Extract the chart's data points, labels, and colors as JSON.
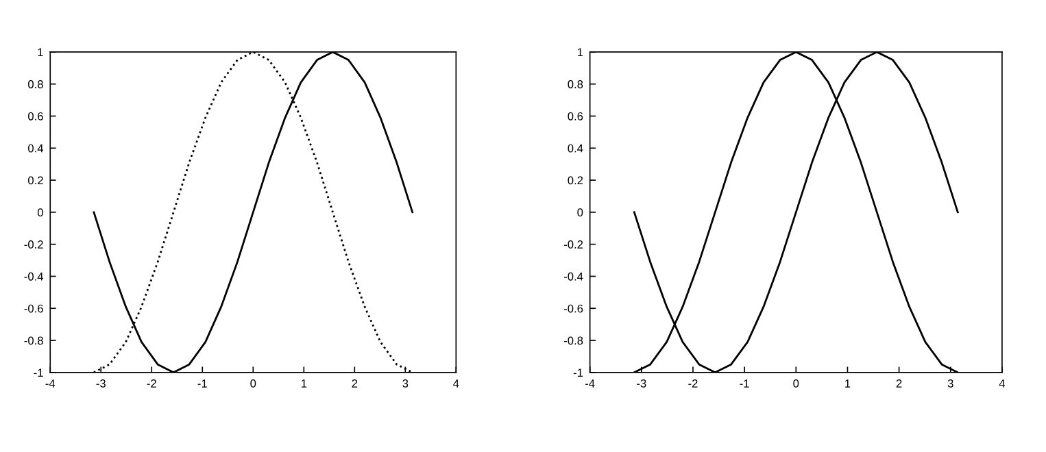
{
  "chart_data": [
    {
      "type": "line",
      "x": [
        -3.14,
        -2.83,
        -2.51,
        -2.2,
        -1.88,
        -1.57,
        -1.26,
        -0.94,
        -0.63,
        -0.31,
        0,
        0.31,
        0.63,
        0.94,
        1.26,
        1.57,
        1.88,
        2.2,
        2.51,
        2.83,
        3.14
      ],
      "series": [
        {
          "color": "#000000",
          "line_style": "solid",
          "values": [
            0,
            -0.31,
            -0.59,
            -0.81,
            -0.95,
            -1,
            -0.95,
            -0.81,
            -0.59,
            -0.31,
            0,
            0.31,
            0.59,
            0.81,
            0.95,
            1,
            0.95,
            0.81,
            0.59,
            0.31,
            0
          ]
        },
        {
          "color": "#000000",
          "line_style": "dotted",
          "values": [
            -1,
            -0.95,
            -0.81,
            -0.59,
            -0.31,
            0,
            0.31,
            0.59,
            0.81,
            0.95,
            1,
            0.95,
            0.81,
            0.59,
            0.31,
            0,
            -0.31,
            -0.59,
            -0.81,
            -0.95,
            -1
          ]
        }
      ],
      "xlim": [
        -4,
        4
      ],
      "ylim": [
        -1,
        1
      ],
      "xticks": [
        -4,
        -3,
        -2,
        -1,
        0,
        1,
        2,
        3,
        4
      ],
      "yticks": [
        -1,
        -0.8,
        -0.6,
        -0.4,
        -0.2,
        0,
        0.2,
        0.4,
        0.6,
        0.8,
        1
      ],
      "grid": false,
      "legend": false
    },
    {
      "type": "line",
      "x": [
        -3.14,
        -2.83,
        -2.51,
        -2.2,
        -1.88,
        -1.57,
        -1.26,
        -0.94,
        -0.63,
        -0.31,
        0,
        0.31,
        0.63,
        0.94,
        1.26,
        1.57,
        1.88,
        2.2,
        2.51,
        2.83,
        3.14
      ],
      "series": [
        {
          "color": "#000000",
          "line_style": "solid",
          "values": [
            0,
            -0.31,
            -0.59,
            -0.81,
            -0.95,
            -1,
            -0.95,
            -0.81,
            -0.59,
            -0.31,
            0,
            0.31,
            0.59,
            0.81,
            0.95,
            1,
            0.95,
            0.81,
            0.59,
            0.31,
            0
          ]
        },
        {
          "color": "#000000",
          "line_style": "solid",
          "values": [
            -1,
            -0.95,
            -0.81,
            -0.59,
            -0.31,
            0,
            0.31,
            0.59,
            0.81,
            0.95,
            1,
            0.95,
            0.81,
            0.59,
            0.31,
            0,
            -0.31,
            -0.59,
            -0.81,
            -0.95,
            -1
          ]
        }
      ],
      "xlim": [
        -4,
        4
      ],
      "ylim": [
        -1,
        1
      ],
      "xticks": [
        -4,
        -3,
        -2,
        -1,
        0,
        1,
        2,
        3,
        4
      ],
      "yticks": [
        -1,
        -0.8,
        -0.6,
        -0.4,
        -0.2,
        0,
        0.2,
        0.4,
        0.6,
        0.8,
        1
      ],
      "grid": false,
      "legend": false
    }
  ]
}
